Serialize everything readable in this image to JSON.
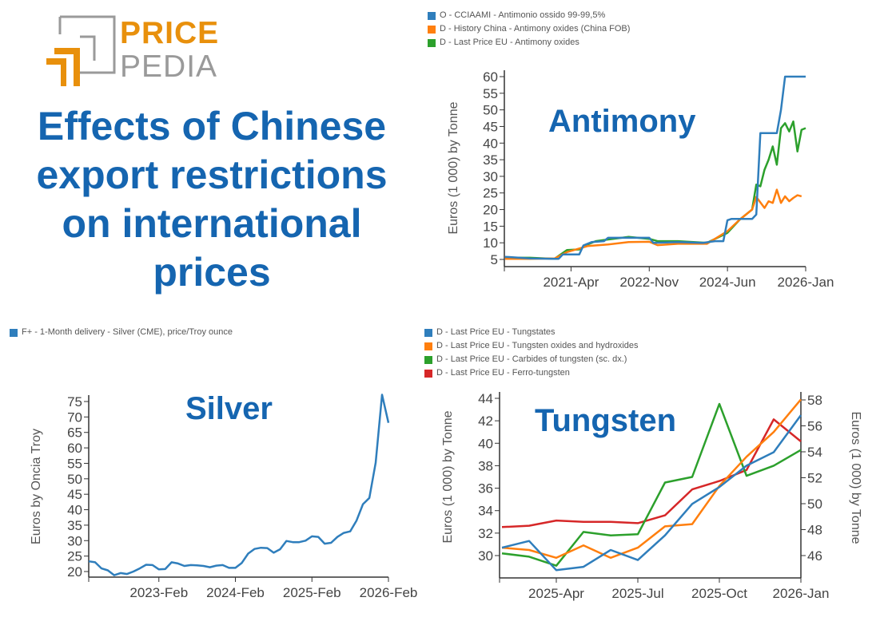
{
  "logo": {
    "word1": "PRICE",
    "word2": "PEDIA",
    "accent": "#e8900c",
    "gray": "#9a9a9a"
  },
  "headline": {
    "lines": [
      "Effects of Chinese",
      "export restrictions",
      "on international",
      "prices"
    ],
    "color": "#1565b0"
  },
  "chart_data": [
    {
      "type": "line",
      "title": "Antimony",
      "ylabel": "Euros (1 000) by Tonne",
      "ylim": [
        5,
        60
      ],
      "yticks": [
        "5",
        "10",
        "15",
        "20",
        "25",
        "30",
        "35",
        "40",
        "45",
        "50",
        "55",
        "60"
      ],
      "xticks": [
        "2021-Apr",
        "2022-Nov",
        "2024-Jun",
        "2026-Jan"
      ],
      "legend": "top",
      "series": [
        {
          "name": "O - CCIAAMI - Antimonio ossido 99-99,5%",
          "color": "#2f7ebc",
          "x": [
            "2019-12",
            "2020-06",
            "2020-12",
            "2021-01",
            "2021-02",
            "2021-06",
            "2021-07",
            "2021-09",
            "2021-12",
            "2022-01",
            "2022-06",
            "2022-11",
            "2022-12",
            "2023-06",
            "2023-12",
            "2024-03",
            "2024-05",
            "2024-06",
            "2024-07",
            "2024-12",
            "2025-01",
            "2025-02",
            "2025-06",
            "2025-07",
            "2025-08",
            "2026-01"
          ],
          "y": [
            5.8,
            5.3,
            5.2,
            5.2,
            6.5,
            6.5,
            9.2,
            10.2,
            10.5,
            11.5,
            11.5,
            11.5,
            10,
            10.2,
            10,
            10.5,
            10.5,
            16.8,
            17.2,
            17.2,
            18.5,
            43,
            43,
            50,
            60,
            60
          ]
        },
        {
          "name": "D - History China - Antimony oxides (China FOB)",
          "color": "#ff7f0e",
          "x": [
            "2019-12",
            "2020-06",
            "2020-12",
            "2021-03",
            "2021-08",
            "2022-01",
            "2022-06",
            "2022-11",
            "2023-01",
            "2023-06",
            "2024-01",
            "2024-06",
            "2024-09",
            "2024-12",
            "2025-01",
            "2025-03",
            "2025-04",
            "2025-05",
            "2025-06",
            "2025-07",
            "2025-08",
            "2025-09",
            "2025-10",
            "2025-11",
            "2025-12"
          ],
          "y": [
            5.2,
            5.2,
            5.3,
            7.2,
            9,
            9.5,
            10.2,
            10.3,
            9.3,
            9.7,
            9.7,
            13.5,
            17,
            20,
            23.8,
            20.5,
            22.5,
            22,
            26,
            22,
            24,
            22.5,
            23.5,
            24.3,
            24
          ]
        },
        {
          "name": "D - Last Price EU - Antimony oxides",
          "color": "#2ca02c",
          "x": [
            "2019-12",
            "2020-06",
            "2020-12",
            "2021-03",
            "2021-06",
            "2021-08",
            "2021-10",
            "2022-01",
            "2022-06",
            "2022-11",
            "2023-01",
            "2023-06",
            "2024-01",
            "2024-06",
            "2024-09",
            "2024-12",
            "2025-01",
            "2025-02",
            "2025-03",
            "2025-04",
            "2025-05",
            "2025-06",
            "2025-07",
            "2025-08",
            "2025-09",
            "2025-10",
            "2025-11",
            "2025-12",
            "2026-01"
          ],
          "y": [
            5.5,
            5.5,
            5.2,
            7.8,
            8,
            9.5,
            10.5,
            11,
            11.8,
            11.2,
            10.5,
            10.5,
            10,
            13,
            17,
            20,
            27.5,
            27,
            32,
            35,
            39,
            33.5,
            44.5,
            46,
            43.5,
            46.5,
            37.5,
            44,
            44.5
          ]
        }
      ]
    },
    {
      "type": "line",
      "title": "Silver",
      "ylabel": "Euros by Oncia Troy",
      "ylim": [
        20,
        75
      ],
      "yticks": [
        "20",
        "25",
        "30",
        "35",
        "40",
        "45",
        "50",
        "55",
        "60",
        "65",
        "70",
        "75"
      ],
      "xticks": [
        "2023-Feb",
        "2024-Feb",
        "2025-Feb",
        "2026-Feb"
      ],
      "legend": "top-left",
      "series": [
        {
          "name": "F+ - 1-Month delivery - Silver (CME), price/Troy ounce",
          "color": "#2f7ebc",
          "x": [
            "2022-03",
            "2022-04",
            "2022-05",
            "2022-06",
            "2022-07",
            "2022-08",
            "2022-09",
            "2022-10",
            "2022-11",
            "2022-12",
            "2023-01",
            "2023-02",
            "2023-03",
            "2023-04",
            "2023-05",
            "2023-06",
            "2023-07",
            "2023-08",
            "2023-09",
            "2023-10",
            "2023-11",
            "2023-12",
            "2024-01",
            "2024-02",
            "2024-03",
            "2024-04",
            "2024-05",
            "2024-06",
            "2024-07",
            "2024-08",
            "2024-09",
            "2024-10",
            "2024-11",
            "2024-12",
            "2025-01",
            "2025-02",
            "2025-03",
            "2025-04",
            "2025-05",
            "2025-06",
            "2025-07",
            "2025-08",
            "2025-09",
            "2025-10",
            "2025-11",
            "2025-12",
            "2026-01",
            "2026-02"
          ],
          "y": [
            23.3,
            23.0,
            21.0,
            20.4,
            18.8,
            19.5,
            19.2,
            20.0,
            21.0,
            22.2,
            22.1,
            20.7,
            20.8,
            23.0,
            22.6,
            21.8,
            22.1,
            22.0,
            21.8,
            21.4,
            21.9,
            22.1,
            21.2,
            21.2,
            22.8,
            25.8,
            27.3,
            27.7,
            27.6,
            26.1,
            27.2,
            29.9,
            29.5,
            29.5,
            30.0,
            31.4,
            31.2,
            29.0,
            29.3,
            31.2,
            32.5,
            33.0,
            36.5,
            41.8,
            43.8,
            55.2,
            77.2,
            68.1
          ]
        }
      ]
    },
    {
      "type": "line",
      "title": "Tungsten",
      "ylabel": "Euros (1 000) by Tonne",
      "ylabel_right": "Euros (1 000) by Tonne",
      "ylim": [
        28,
        44
      ],
      "ylim_right": [
        44.5,
        58
      ],
      "yticks": [
        "30",
        "32",
        "34",
        "36",
        "38",
        "40",
        "42",
        "44"
      ],
      "yticks_right": [
        "46",
        "48",
        "50",
        "52",
        "54",
        "56",
        "58"
      ],
      "xticks": [
        "2025-Apr",
        "2025-Jul",
        "2025-Oct",
        "2026-Jan"
      ],
      "legend": "top-left",
      "x": [
        "2025-02",
        "2025-03",
        "2025-04",
        "2025-05",
        "2025-06",
        "2025-07",
        "2025-08",
        "2025-09",
        "2025-10",
        "2025-11",
        "2025-12",
        "2026-01"
      ],
      "series": [
        {
          "name": "D - Last Price EU - Tungstates",
          "color": "#2f7ebc",
          "axis": "left",
          "y": [
            30.7,
            31.3,
            28.7,
            29.0,
            30.5,
            29.6,
            31.8,
            34.6,
            36.1,
            38.0,
            39.2,
            42.5
          ]
        },
        {
          "name": "D - Last Price EU - Tungsten oxides and hydroxides",
          "color": "#ff7f0e",
          "axis": "left",
          "y": [
            30.7,
            30.5,
            29.8,
            30.9,
            29.8,
            30.7,
            32.6,
            32.8,
            36.2,
            38.8,
            41.0,
            43.9
          ]
        },
        {
          "name": "D - Last Price EU - Carbides of tungsten (sc. dx.)",
          "color": "#2ca02c",
          "axis": "left",
          "y": [
            30.2,
            29.9,
            29.1,
            32.1,
            31.8,
            31.9,
            36.5,
            37.0,
            43.5,
            37.1,
            38.0,
            39.4
          ]
        },
        {
          "name": "D - Last Price EU - Ferro-tungsten",
          "color": "#d62728",
          "axis": "right",
          "y": [
            48.2,
            48.3,
            48.7,
            48.6,
            48.6,
            48.5,
            49.1,
            51.1,
            51.75,
            52.6,
            56.5,
            54.8
          ]
        }
      ]
    }
  ]
}
